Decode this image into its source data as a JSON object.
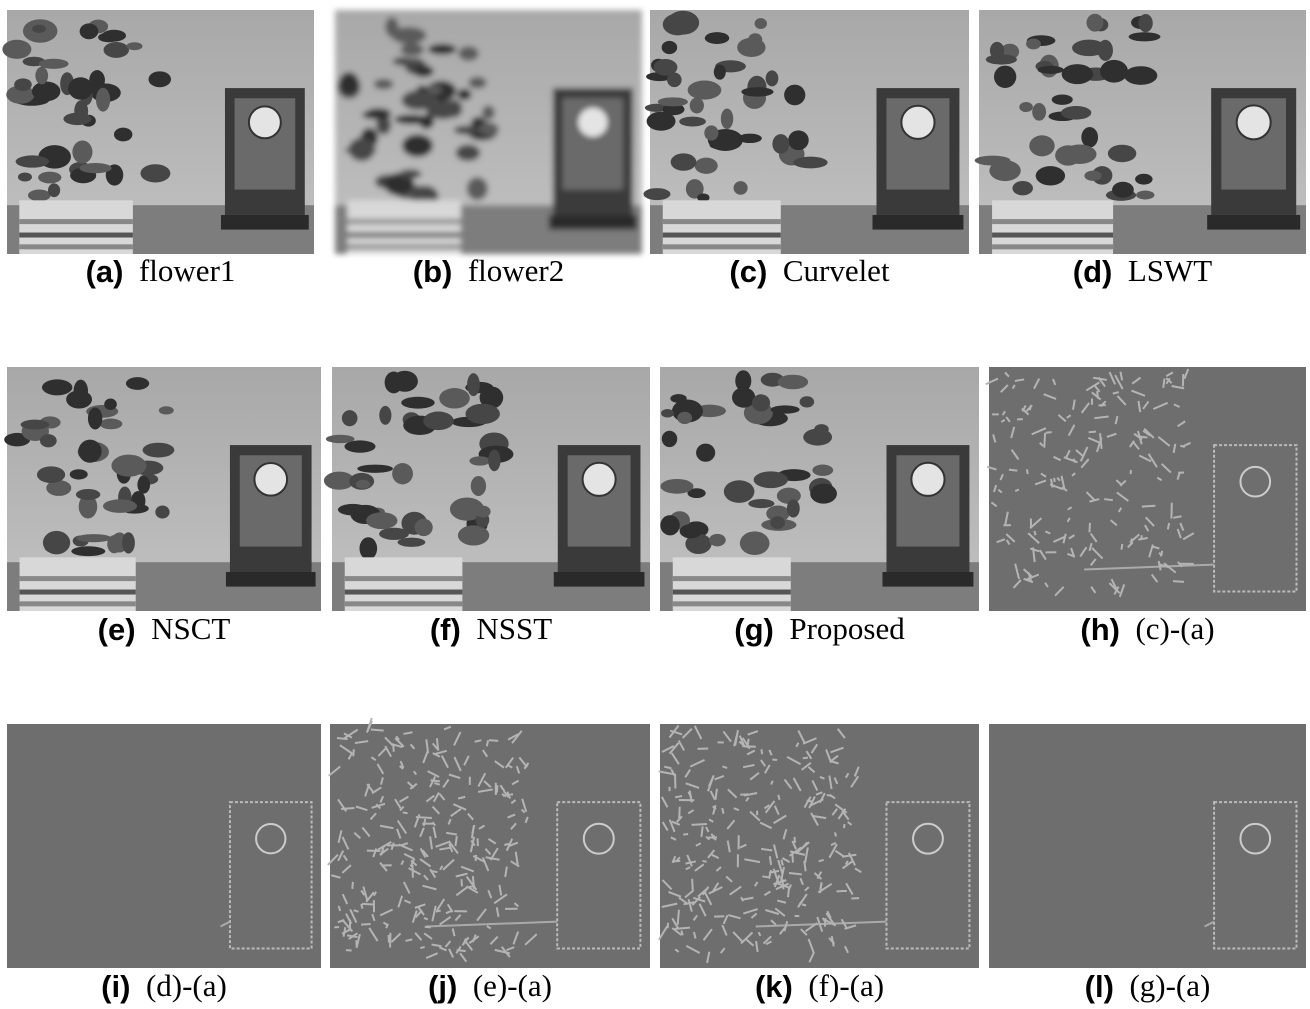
{
  "panels": [
    {
      "letter": "(a)",
      "caption": "flower1"
    },
    {
      "letter": "(b)",
      "caption": "flower2"
    },
    {
      "letter": "(c)",
      "caption": "Curvelet"
    },
    {
      "letter": "(d)",
      "caption": "LSWT"
    },
    {
      "letter": "(e)",
      "caption": "NSCT"
    },
    {
      "letter": "(f)",
      "caption": "NSST"
    },
    {
      "letter": "(g)",
      "caption": "Proposed"
    },
    {
      "letter": "(h)",
      "caption": "(c)-(a)"
    },
    {
      "letter": "(i)",
      "caption": "(d)-(a)"
    },
    {
      "letter": "(j)",
      "caption": "(e)-(a)"
    },
    {
      "letter": "(k)",
      "caption": "(f)-(a)"
    },
    {
      "letter": "(l)",
      "caption": "(g)-(a)"
    }
  ]
}
